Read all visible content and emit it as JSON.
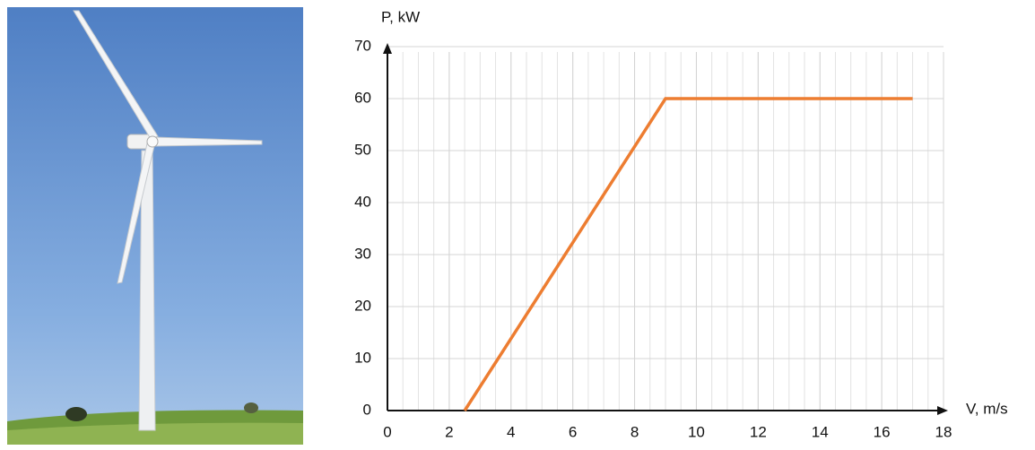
{
  "chart_data": {
    "type": "line",
    "x_label": "V, m/s",
    "y_label": "P, kW",
    "x": [
      2.5,
      9,
      17
    ],
    "series": [
      {
        "name": "P",
        "color": "#ed7d31",
        "values": [
          0,
          60,
          60
        ]
      }
    ],
    "xlim": [
      0,
      18
    ],
    "xticks": [
      0,
      2,
      4,
      6,
      8,
      10,
      12,
      14,
      16,
      18
    ],
    "ylim": [
      0,
      70
    ],
    "yticks": [
      0,
      10,
      20,
      30,
      40,
      50,
      60,
      70
    ],
    "grid": true,
    "x_minor_grid_step": 0.5
  }
}
